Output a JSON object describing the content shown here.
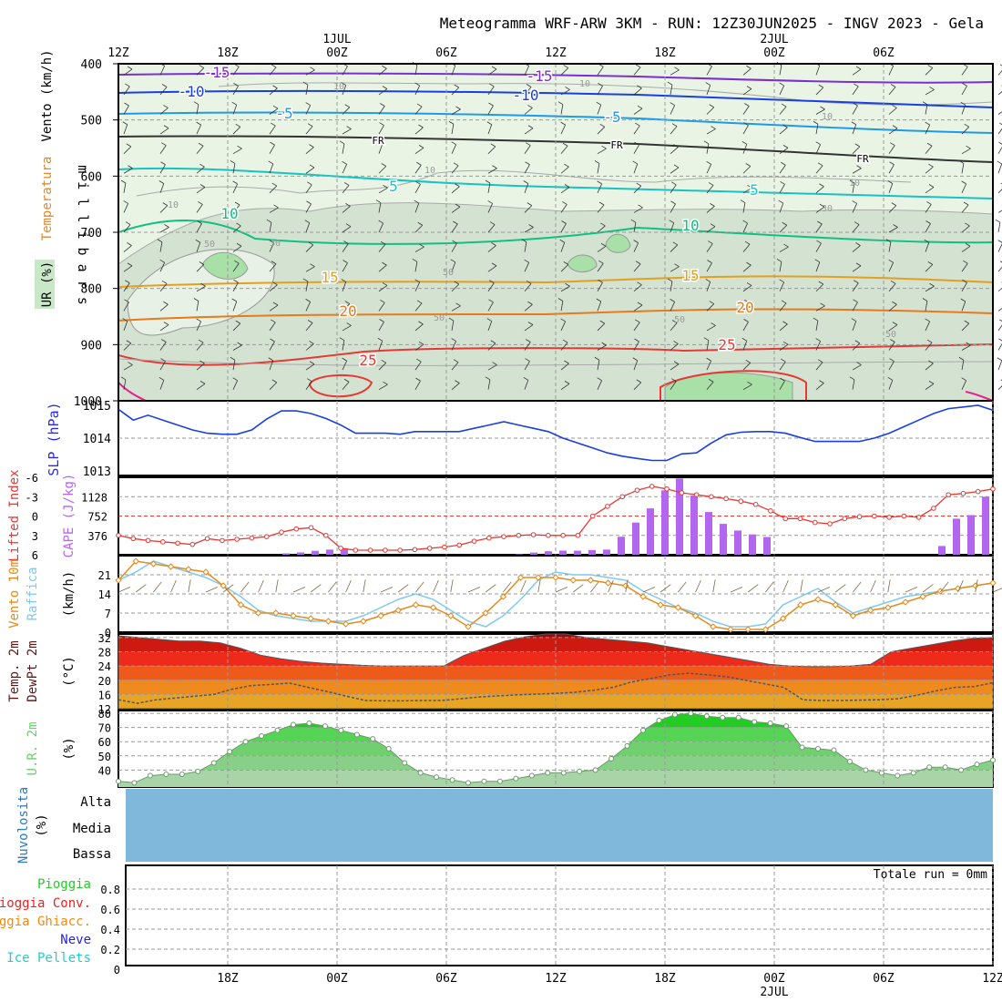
{
  "title": "Meteogramma WRF-ARW 3KM - RUN: 12Z30JUN2025 - INGV 2023 - Gela",
  "time_axis": {
    "top_labels": [
      "12Z",
      "18Z",
      "00Z",
      "06Z",
      "12Z",
      "18Z",
      "00Z",
      "06Z"
    ],
    "top_date_labels": [
      "1JUL",
      "2JUL"
    ],
    "bottom_labels": [
      "18Z",
      "00Z",
      "06Z",
      "12Z",
      "18Z",
      "00Z",
      "06Z",
      "12Z"
    ],
    "bottom_date_label": "2JUL"
  },
  "upper": {
    "ylabel": "m i l l i b a r s",
    "ylim": [
      1000,
      400
    ],
    "yticks": [
      "400",
      "500",
      "600",
      "700",
      "800",
      "900",
      "1000"
    ],
    "legend": [
      {
        "text": "Vento (km/h)",
        "color": "#000000"
      },
      {
        "text": "Temperatura",
        "color": "#e0882a"
      },
      {
        "text": "UR (%)",
        "color": "#000000"
      }
    ],
    "temp_labels": [
      "-15",
      "-15",
      "-10",
      "-10",
      "-5",
      "-5",
      "FR",
      "FR",
      "FR",
      "5",
      "5",
      "10",
      "10",
      "15",
      "15",
      "20",
      "20",
      "25",
      "25"
    ],
    "rh_labels": [
      "10",
      "10",
      "10",
      "10",
      "10",
      "10",
      "30",
      "30",
      "50",
      "50",
      "50",
      "50",
      "50"
    ]
  },
  "slp": {
    "ylabel": "SLP (hPa)",
    "yticks": [
      "1015",
      "1014",
      "1013"
    ],
    "ylim": [
      1013,
      1015
    ]
  },
  "cape": {
    "label_left": "Lifted Index",
    "label_right": "CAPE (J/kg)",
    "li_ticks": [
      "-6",
      "-3",
      "0",
      "3",
      "6"
    ],
    "cape_ticks": [
      "1128",
      "752",
      "376"
    ],
    "ylim_li": [
      6,
      -6
    ],
    "ylim_cape": [
      0,
      1504
    ]
  },
  "wind10": {
    "label_a": "Vento 10m",
    "label_b": "Raffica",
    "unit": "(km/h)",
    "yticks": [
      "21",
      "14",
      "7",
      "0"
    ],
    "ylim": [
      0,
      28
    ]
  },
  "temp2m": {
    "label_a": "Temp. 2m",
    "label_b": "DewPt 2m",
    "unit": "(°C)",
    "yticks": [
      "32",
      "28",
      "24",
      "20",
      "16",
      "12"
    ],
    "ylim": [
      12,
      33
    ]
  },
  "rh2m": {
    "label": "U.R. 2m",
    "unit": "(%)",
    "yticks": [
      "80",
      "70",
      "60",
      "50",
      "40"
    ],
    "ylim": [
      28,
      82
    ]
  },
  "clouds": {
    "label_a": "Nuvolosita",
    "label_b": "(%)",
    "levels": [
      "Alta",
      "Media",
      "Bassa"
    ]
  },
  "precip": {
    "legend": [
      {
        "text": "Pioggia",
        "color": "#22cc22"
      },
      {
        "text": "Pioggia Conv.",
        "color": "#ee2222"
      },
      {
        "text": "Pioggia Ghiacc.",
        "color": "#ff8800"
      },
      {
        "text": "Neve",
        "color": "#2222ee"
      },
      {
        "text": "Ice Pellets",
        "color": "#22cccc"
      }
    ],
    "yticks": [
      "0.8",
      "0.6",
      "0.4",
      "0.2",
      "0"
    ],
    "ylim": [
      0,
      1
    ],
    "total": "Totale run = 0mm"
  },
  "chart_data": {
    "type": "line",
    "title": "Meteogramma WRF-ARW 3KM - RUN: 12Z30JUN2025 - INGV 2023 - Gela",
    "x_start": "2025-06-30T12Z",
    "x_step_hours": 1,
    "slp_hpa": [
      1014.88,
      1014.55,
      1014.7,
      1014.55,
      1014.4,
      1014.25,
      1014.15,
      1014.12,
      1014.12,
      1014.25,
      1014.58,
      1014.83,
      1014.83,
      1014.75,
      1014.6,
      1014.4,
      1014.15,
      1014.15,
      1014.15,
      1014.12,
      1014.2,
      1014.2,
      1014.2,
      1014.2,
      1014.3,
      1014.4,
      1014.5,
      1014.4,
      1014.3,
      1014.2,
      1014.0,
      1013.85,
      1013.7,
      1013.55,
      1013.45,
      1013.38,
      1013.32,
      1013.32,
      1013.52,
      1013.55,
      1013.85,
      1014.1,
      1014.18,
      1014.2,
      1014.2,
      1014.15,
      1014.02,
      1013.9,
      1013.9,
      1013.9,
      1013.9,
      1014.0,
      1014.15,
      1014.35,
      1014.55,
      1014.75,
      1014.9,
      1014.95,
      1015.0,
      1014.85
    ],
    "lifted_index": [
      3,
      3.5,
      3.8,
      4,
      4.2,
      4.4,
      3.5,
      3.8,
      3.6,
      3.4,
      3.2,
      2.5,
      2.0,
      1.8,
      3.0,
      5.0,
      5.3,
      5.3,
      5.3,
      5.3,
      5.2,
      5.0,
      4.8,
      4.5,
      3.9,
      3.4,
      3.2,
      3.0,
      2.9,
      3.0,
      3.0,
      3.0,
      0,
      -1.5,
      -3,
      -4,
      -4.6,
      -4.2,
      -3.6,
      -3.3,
      -3.0,
      -2.7,
      -2.3,
      -1.8,
      -0.8,
      0.4,
      0.4,
      1.0,
      1.2,
      0.4,
      0.1,
      0,
      0.2,
      0,
      0.2,
      -1.2,
      -3.3,
      -3.5,
      -3.8,
      -4.2
    ],
    "cape_jkg": [
      0,
      0,
      0,
      0,
      0,
      0,
      0,
      0,
      0,
      0,
      0,
      27,
      45,
      76,
      100,
      127,
      0,
      0,
      0,
      0,
      0,
      0,
      0,
      0,
      0,
      0,
      0,
      9,
      42,
      68,
      80,
      78,
      92,
      100,
      350,
      625,
      900,
      1250,
      1480,
      1150,
      830,
      600,
      470,
      395,
      345,
      0,
      0,
      0,
      0,
      0,
      0,
      0,
      0,
      0,
      0,
      0,
      170,
      700,
      770,
      1128
    ],
    "wind10_kmh": [
      19,
      26,
      25,
      24,
      23,
      22,
      17,
      10,
      7,
      7,
      6,
      5,
      4,
      3,
      4,
      6,
      8,
      10,
      9,
      6,
      2,
      7,
      13,
      20,
      20,
      20,
      19,
      19,
      18,
      17,
      13,
      10,
      9,
      6,
      2,
      1,
      1,
      1,
      5,
      10,
      12,
      10,
      6,
      8,
      9,
      11,
      13,
      15,
      16,
      17,
      18
    ],
    "gust_kmh": [
      19,
      22,
      26,
      24,
      22,
      20,
      17,
      13,
      8,
      6,
      5,
      4,
      4,
      4,
      6,
      9,
      12,
      14,
      12,
      8,
      4,
      2,
      6,
      12,
      19,
      22,
      21,
      21,
      20,
      19,
      15,
      12,
      9,
      7,
      4,
      2,
      2,
      3,
      10,
      13,
      16,
      11,
      7,
      9,
      11,
      13,
      14,
      15,
      16,
      17,
      18
    ],
    "temp2m_c": [
      32.5,
      32,
      31.5,
      31,
      31,
      30.5,
      29,
      27,
      26,
      25.3,
      24.8,
      24.5,
      24.2,
      24,
      24,
      24,
      24,
      27,
      29,
      31,
      32.2,
      33,
      33,
      32,
      31.5,
      31,
      30.5,
      29.5,
      28.5,
      27.5,
      26.5,
      25.5,
      24.5,
      24,
      23.8,
      23.8,
      24,
      24.5,
      28,
      29,
      30,
      31,
      31.8,
      32
    ],
    "dewpt2m_c": [
      14.5,
      13.5,
      14.5,
      15,
      15.5,
      16,
      17.5,
      18.5,
      18.8,
      19.2,
      18,
      16.8,
      15.5,
      14.3,
      14.2,
      14.2,
      14.3,
      14.3,
      14.8,
      15.3,
      15.6,
      15.9,
      16.1,
      16.3,
      16.6,
      17.2,
      18,
      19.5,
      20.5,
      21.5,
      22,
      21.5,
      21,
      20,
      19,
      18,
      14.5,
      14.3,
      14.3,
      14.4,
      14.5,
      14.8,
      15.8,
      17,
      18,
      18.2,
      19.3
    ],
    "rh2m_pct": [
      32,
      31,
      36,
      37,
      37,
      39,
      45,
      53,
      60,
      64,
      68,
      72,
      73,
      71,
      68,
      65,
      62,
      55,
      45,
      38,
      35,
      33,
      31,
      32,
      32,
      34,
      36,
      38,
      38,
      39,
      40,
      48,
      57,
      68,
      75,
      79,
      80,
      78,
      77,
      77,
      74,
      73,
      71,
      56,
      55,
      54,
      46,
      40,
      38,
      36,
      38,
      42,
      42,
      40,
      44,
      47
    ],
    "cloud_alta_pct": 100,
    "cloud_media_pct": 100,
    "cloud_bassa_pct": 100,
    "precip_mm": 0
  }
}
